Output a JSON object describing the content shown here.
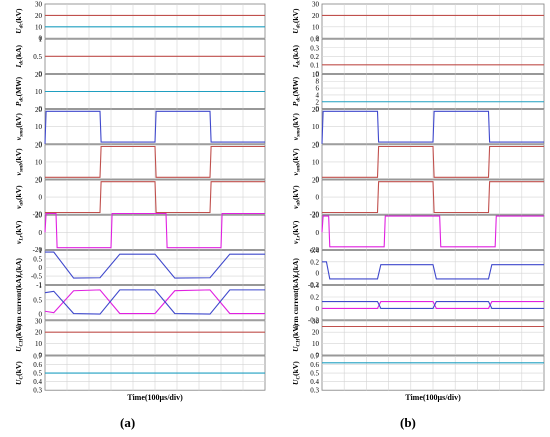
{
  "figure": {
    "xlabel": "Time(100μs/div)",
    "captions": [
      "(a)",
      "(b)"
    ]
  },
  "colors": {
    "red": "#c0504d",
    "blue": "#3f48cc",
    "magenta": "#e020e0",
    "cyan": "#1f9fc0",
    "grid": "#d4d4d4",
    "frame": "#7f7f7f"
  },
  "chart_data": [
    {
      "type": "line",
      "panel": "a",
      "xlabel": "Time(100μs/div)",
      "x_divisions": 10,
      "grid": true,
      "subplots": [
        {
          "ylabel": "Udc(kV)",
          "ylim": [
            0,
            30
          ],
          "yticks": [
            "0",
            "10",
            "20",
            "30"
          ],
          "series": [
            {
              "color": "red",
              "x": [
                0,
                10
              ],
              "y": [
                20,
                20
              ]
            },
            {
              "color": "cyan",
              "x": [
                0,
                10
              ],
              "y": [
                10,
                10
              ]
            }
          ]
        },
        {
          "ylabel": "Idc(kA)",
          "ylim": [
            0,
            1
          ],
          "yticks": [
            "0",
            "0.5",
            "1"
          ],
          "series": [
            {
              "color": "red",
              "x": [
                0,
                10
              ],
              "y": [
                0.5,
                0.5
              ]
            }
          ]
        },
        {
          "ylabel": "Pdc(MW)",
          "ylim": [
            0,
            20
          ],
          "yticks": [
            "0",
            "10",
            "20"
          ],
          "series": [
            {
              "color": "cyan",
              "x": [
                0,
                10
              ],
              "y": [
                10,
                10
              ]
            }
          ]
        },
        {
          "ylabel": "vsma(kV)",
          "ylim": [
            0,
            20
          ],
          "yticks": [
            "0",
            "10",
            "20"
          ],
          "series": [
            {
              "color": "blue",
              "x": [
                0,
                0.05,
                2.5,
                2.55,
                5.0,
                5.05,
                7.5,
                7.55,
                10
              ],
              "y": [
                0,
                19,
                19,
                1,
                1,
                19,
                19,
                1,
                1
              ]
            }
          ]
        },
        {
          "ylabel": "vsmb(kV)",
          "ylim": [
            0,
            20
          ],
          "yticks": [
            "0",
            "10",
            "20"
          ],
          "series": [
            {
              "color": "red",
              "x": [
                0,
                2.5,
                2.55,
                5.0,
                5.05,
                7.5,
                7.55,
                10
              ],
              "y": [
                1,
                1,
                19,
                19,
                1,
                1,
                19,
                19
              ]
            }
          ]
        },
        {
          "ylabel": "vab(kV)",
          "ylim": [
            -20,
            20
          ],
          "yticks": [
            "-20",
            "0",
            "20"
          ],
          "series": [
            {
              "color": "red",
              "x": [
                0,
                2.5,
                2.55,
                5.0,
                5.05,
                7.5,
                7.55,
                10
              ],
              "y": [
                -18,
                -18,
                18,
                18,
                -18,
                -18,
                18,
                18
              ]
            }
          ]
        },
        {
          "ylabel": "vLr(kV)",
          "ylim": [
            -20,
            20
          ],
          "yticks": [
            "-20",
            "0",
            "20"
          ],
          "series": [
            {
              "color": "magenta",
              "x": [
                0,
                0.05,
                0.5,
                0.55,
                3.0,
                3.05,
                5.5,
                5.55,
                8.0,
                8.05,
                10
              ],
              "y": [
                0,
                22,
                22,
                -18,
                -18,
                22,
                22,
                -18,
                -18,
                22,
                22
              ]
            }
          ]
        },
        {
          "ylabel": "ir(kA)",
          "ylim": [
            -1,
            1
          ],
          "yticks": [
            "-1",
            "-0.5",
            "0",
            "0.5",
            "1"
          ],
          "series": [
            {
              "color": "blue",
              "x": [
                0,
                0.4,
                1.3,
                2.5,
                3.4,
                5.0,
                5.9,
                7.5,
                8.4,
                10
              ],
              "y": [
                0.9,
                0.9,
                -0.62,
                -0.6,
                0.78,
                0.78,
                -0.62,
                -0.6,
                0.78,
                0.78
              ]
            }
          ]
        },
        {
          "ylabel": "arm current(kA)",
          "ylim": [
            -0.2,
            1
          ],
          "yticks": [
            "0",
            "0.5",
            "1"
          ],
          "series": [
            {
              "color": "magenta",
              "x": [
                0,
                0.4,
                1.3,
                2.5,
                3.4,
                5.0,
                5.9,
                7.5,
                8.4,
                10
              ],
              "y": [
                0.1,
                0.05,
                0.82,
                0.85,
                0.02,
                0.02,
                0.82,
                0.85,
                0.02,
                0.02
              ]
            },
            {
              "color": "blue",
              "x": [
                0,
                0.4,
                1.3,
                2.5,
                3.4,
                5.0,
                5.9,
                7.5,
                8.4,
                10
              ],
              "y": [
                0.75,
                0.8,
                0.02,
                0.0,
                0.85,
                0.85,
                0.02,
                0.0,
                0.85,
                0.85
              ]
            }
          ]
        },
        {
          "ylabel": "UCH(kV)",
          "ylim": [
            0,
            30
          ],
          "yticks": [
            "0",
            "10",
            "20",
            "30"
          ],
          "series": [
            {
              "color": "red",
              "x": [
                0,
                10
              ],
              "y": [
                20,
                20
              ]
            }
          ]
        },
        {
          "ylabel": "UC(kV)",
          "ylim": [
            0.3,
            0.7
          ],
          "yticks": [
            "0.3",
            "0.4",
            "0.5",
            "0.6",
            "0.7"
          ],
          "series": [
            {
              "color": "cyan",
              "x": [
                0,
                10
              ],
              "y": [
                0.5,
                0.5
              ]
            }
          ]
        }
      ]
    },
    {
      "type": "line",
      "panel": "b",
      "xlabel": "Time(100μs/div)",
      "x_divisions": 10,
      "grid": true,
      "subplots": [
        {
          "ylabel": "Udc(kV)",
          "ylim": [
            0,
            30
          ],
          "yticks": [
            "0",
            "10",
            "20",
            "30"
          ],
          "series": [
            {
              "color": "red",
              "x": [
                0,
                10
              ],
              "y": [
                20,
                20
              ]
            }
          ]
        },
        {
          "ylabel": "Idc(kA)",
          "ylim": [
            0,
            0.4
          ],
          "yticks": [
            "0",
            "0.1",
            "0.2",
            "0.3",
            "0.4"
          ],
          "series": [
            {
              "color": "red",
              "x": [
                0,
                10
              ],
              "y": [
                0.1,
                0.1
              ]
            }
          ]
        },
        {
          "ylabel": "Pdc(MW)",
          "ylim": [
            0,
            10
          ],
          "yticks": [
            "0",
            "2",
            "4",
            "6",
            "8",
            "10"
          ],
          "series": [
            {
              "color": "cyan",
              "x": [
                0,
                10
              ],
              "y": [
                2,
                2
              ]
            }
          ]
        },
        {
          "ylabel": "vsma(kV)",
          "ylim": [
            0,
            20
          ],
          "yticks": [
            "0",
            "10",
            "20"
          ],
          "series": [
            {
              "color": "blue",
              "x": [
                0,
                0.05,
                2.5,
                2.55,
                5.0,
                5.05,
                7.5,
                7.55,
                10
              ],
              "y": [
                0,
                19,
                19,
                1,
                1,
                19,
                19,
                1,
                1
              ]
            }
          ]
        },
        {
          "ylabel": "vsmb(kV)",
          "ylim": [
            0,
            20
          ],
          "yticks": [
            "0",
            "10",
            "20"
          ],
          "series": [
            {
              "color": "red",
              "x": [
                0,
                2.5,
                2.55,
                5.0,
                5.05,
                7.5,
                7.55,
                10
              ],
              "y": [
                1,
                1,
                19,
                19,
                1,
                1,
                19,
                19
              ]
            }
          ]
        },
        {
          "ylabel": "vab(kV)",
          "ylim": [
            -20,
            20
          ],
          "yticks": [
            "-20",
            "0",
            "20"
          ],
          "series": [
            {
              "color": "red",
              "x": [
                0,
                2.5,
                2.55,
                5.0,
                5.05,
                7.5,
                7.55,
                10
              ],
              "y": [
                -18,
                -18,
                18,
                18,
                -18,
                -18,
                18,
                18
              ]
            }
          ]
        },
        {
          "ylabel": "vLr(kV)",
          "ylim": [
            -20,
            20
          ],
          "yticks": [
            "-20",
            "0",
            "20"
          ],
          "series": [
            {
              "color": "magenta",
              "x": [
                0,
                0.05,
                0.3,
                0.35,
                2.8,
                2.85,
                5.3,
                5.35,
                7.8,
                7.85,
                10
              ],
              "y": [
                0,
                19,
                19,
                -17,
                -17,
                19,
                19,
                -17,
                -17,
                19,
                19
              ]
            }
          ]
        },
        {
          "ylabel": "ir(kA)",
          "ylim": [
            -0.2,
            0.4
          ],
          "yticks": [
            "-0.2",
            "0",
            "0.2",
            "0.4"
          ],
          "series": [
            {
              "color": "blue",
              "x": [
                0,
                0.2,
                0.35,
                2.5,
                2.65,
                5.0,
                5.15,
                7.5,
                7.65,
                10
              ],
              "y": [
                0.2,
                0.2,
                -0.1,
                -0.1,
                0.15,
                0.15,
                -0.1,
                -0.1,
                0.15,
                0.15
              ]
            }
          ]
        },
        {
          "ylabel": "arm current(kA)",
          "ylim": [
            -0.2,
            0.4
          ],
          "yticks": [
            "-0.2",
            "0",
            "0.2",
            "0.4"
          ],
          "series": [
            {
              "color": "magenta",
              "x": [
                0,
                2.5,
                2.65,
                5.0,
                5.15,
                7.5,
                7.65,
                10
              ],
              "y": [
                0.0,
                0.0,
                0.12,
                0.12,
                0.0,
                0.0,
                0.12,
                0.12
              ]
            },
            {
              "color": "blue",
              "x": [
                0,
                2.5,
                2.65,
                5.0,
                5.15,
                7.5,
                7.65,
                10
              ],
              "y": [
                0.12,
                0.12,
                0.0,
                0.0,
                0.12,
                0.12,
                0.0,
                0.0
              ]
            }
          ]
        },
        {
          "ylabel": "UCH(kV)",
          "ylim": [
            0,
            30
          ],
          "yticks": [
            "0",
            "10",
            "20",
            "30"
          ],
          "series": [
            {
              "color": "red",
              "x": [
                0,
                10
              ],
              "y": [
                25,
                25
              ]
            }
          ]
        },
        {
          "ylabel": "UC(kV)",
          "ylim": [
            0.3,
            0.7
          ],
          "yticks": [
            "0.3",
            "0.4",
            "0.5",
            "0.6",
            "0.7"
          ],
          "series": [
            {
              "color": "cyan",
              "x": [
                0,
                10
              ],
              "y": [
                0.62,
                0.62
              ]
            }
          ]
        }
      ]
    }
  ]
}
